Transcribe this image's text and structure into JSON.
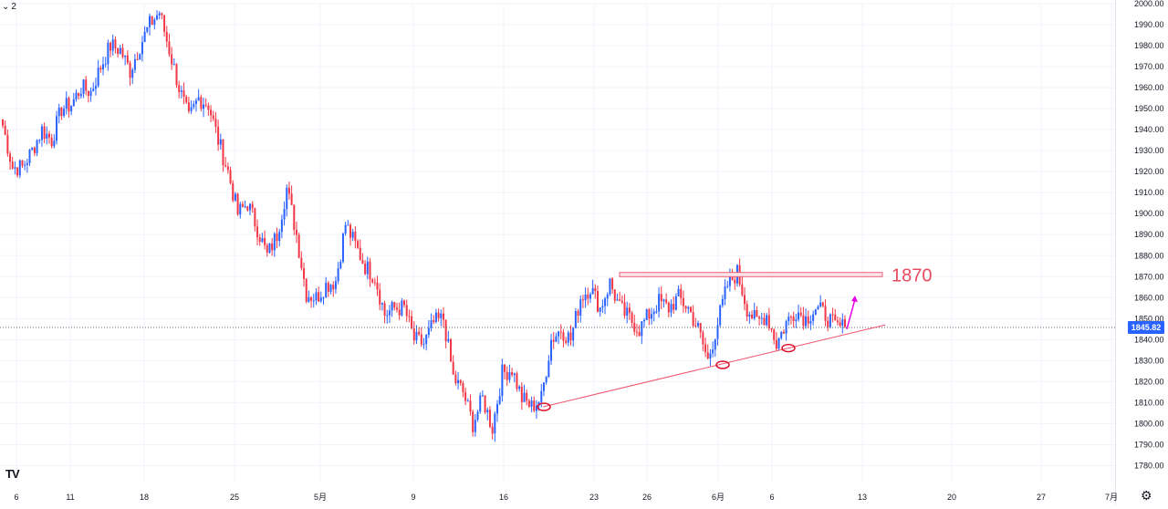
{
  "interval": {
    "chevron": "chevron-down-icon",
    "label": "2"
  },
  "logo": {
    "text": "TV"
  },
  "settings_icon": "gear-icon",
  "colors": {
    "up": "#2962ff",
    "down": "#f23645",
    "trendline": "#f0546a",
    "zone_fill": "#fde4e8",
    "zone_stroke": "#e8607a",
    "marker": "#e0102a",
    "arrow": "#e600e6",
    "annotation": "#e84a5f",
    "grid": "#f0f3fa",
    "price_tag": "#2962ff"
  },
  "chart_data": {
    "type": "candlestick",
    "ylim": [
      1775,
      2000
    ],
    "y_ticks": [
      "2000.00",
      "1990.00",
      "1980.00",
      "1970.00",
      "1960.00",
      "1950.00",
      "1940.00",
      "1930.00",
      "1920.00",
      "1910.00",
      "1900.00",
      "1890.00",
      "1880.00",
      "1870.00",
      "1860.00",
      "1850.00",
      "1840.00",
      "1830.00",
      "1820.00",
      "1810.00",
      "1800.00",
      "1790.00",
      "1780.00"
    ],
    "x_ticks": [
      "6",
      "11",
      "18",
      "25",
      "5月",
      "9",
      "16",
      "23",
      "26",
      "6月",
      "6",
      "13",
      "20",
      "27",
      "7月"
    ],
    "current_price": "1845.82",
    "grid": true,
    "annotations": [
      {
        "type": "resistance_zone",
        "low": 1870,
        "high": 1872,
        "label": "1870"
      },
      {
        "type": "ascending_trendline",
        "from": 1808,
        "to": 1847
      },
      {
        "type": "swing_low_marker",
        "price": 1808
      },
      {
        "type": "swing_low_marker",
        "price": 1828
      },
      {
        "type": "swing_low_marker",
        "price": 1836
      },
      {
        "type": "projection_arrow",
        "from": 1845,
        "to": 1861
      }
    ],
    "path": [
      {
        "close": 1942
      },
      {
        "close": 1922
      },
      {
        "close": 1922
      },
      {
        "close": 1930
      },
      {
        "close": 1940
      },
      {
        "close": 1935
      },
      {
        "close": 1950
      },
      {
        "close": 1952
      },
      {
        "close": 1960
      },
      {
        "close": 1958
      },
      {
        "close": 1970
      },
      {
        "close": 1980
      },
      {
        "close": 1978
      },
      {
        "close": 1968
      },
      {
        "close": 1980
      },
      {
        "close": 1990
      },
      {
        "close": 1996
      },
      {
        "close": 1978
      },
      {
        "close": 1960
      },
      {
        "close": 1945
      },
      {
        "close": 1955
      },
      {
        "close": 1952
      },
      {
        "close": 1935
      },
      {
        "close": 1920
      },
      {
        "close": 1900
      },
      {
        "close": 1905
      },
      {
        "close": 1893
      },
      {
        "close": 1880
      },
      {
        "close": 1890
      },
      {
        "close": 1912
      },
      {
        "close": 1890
      },
      {
        "close": 1862
      },
      {
        "close": 1860
      },
      {
        "close": 1866
      },
      {
        "close": 1868
      },
      {
        "close": 1895
      },
      {
        "close": 1885
      },
      {
        "close": 1875
      },
      {
        "close": 1870
      },
      {
        "close": 1852
      },
      {
        "close": 1855
      },
      {
        "close": 1855
      },
      {
        "close": 1840
      },
      {
        "close": 1838
      },
      {
        "close": 1848
      },
      {
        "close": 1850
      },
      {
        "close": 1822
      },
      {
        "close": 1815
      },
      {
        "close": 1800
      },
      {
        "close": 1812
      },
      {
        "close": 1798
      },
      {
        "close": 1824
      },
      {
        "close": 1826
      },
      {
        "close": 1812
      },
      {
        "close": 1808
      },
      {
        "close": 1812
      },
      {
        "close": 1840
      },
      {
        "close": 1845
      },
      {
        "close": 1840
      },
      {
        "close": 1860
      },
      {
        "close": 1865
      },
      {
        "close": 1855
      },
      {
        "close": 1867
      },
      {
        "close": 1855
      },
      {
        "close": 1850
      },
      {
        "close": 1845
      },
      {
        "close": 1852
      },
      {
        "close": 1858
      },
      {
        "close": 1855
      },
      {
        "close": 1860
      },
      {
        "close": 1855
      },
      {
        "close": 1845
      },
      {
        "close": 1830
      },
      {
        "close": 1848
      },
      {
        "close": 1866
      },
      {
        "close": 1872
      },
      {
        "close": 1855
      },
      {
        "close": 1848
      },
      {
        "close": 1852
      },
      {
        "close": 1838
      },
      {
        "close": 1848
      },
      {
        "close": 1854
      },
      {
        "close": 1850
      },
      {
        "close": 1855
      },
      {
        "close": 1852
      },
      {
        "close": 1846
      },
      {
        "close": 1846
      }
    ]
  }
}
